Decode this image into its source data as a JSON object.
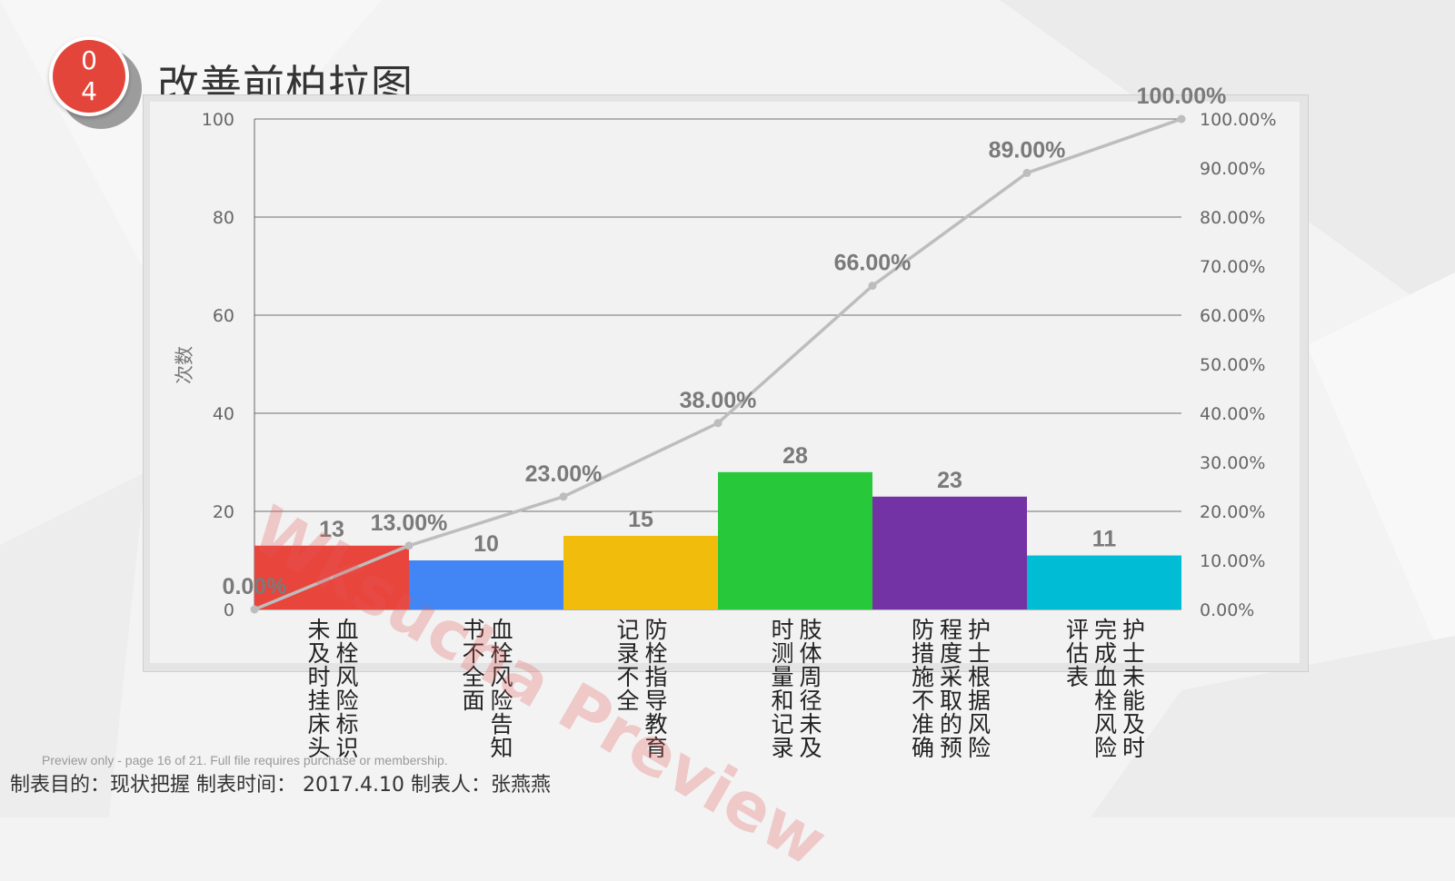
{
  "badge": {
    "line1": "0",
    "line2": "4"
  },
  "page_title": "改善前柏拉图",
  "watermark": "Wksucha Preview",
  "preview_note": "Preview only - page 16 of 21. Full file requires purchase or membership.",
  "footer": "制表目的：现状把握  制表时间： 2017.4.10  制表人：张燕燕",
  "colors": {
    "line": "#bdbdbd",
    "grid": "#444444",
    "bars": [
      "#e8453c",
      "#4285f4",
      "#f2bc0d",
      "#27c93a",
      "#7433a4",
      "#00bcd4"
    ]
  },
  "chart_data": {
    "type": "bar",
    "categories": [
      "血栓风险标识未及时挂床头",
      "血栓风险告知书不全面",
      "防栓指导教育记录不全",
      "肢体周径未及时测量和记录",
      "护士根据风险程度采取的预防措施不准确",
      "护士未能及时完成血栓风险评估表"
    ],
    "values": [
      13,
      10,
      15,
      28,
      23,
      11
    ],
    "value_labels": [
      "13",
      "10",
      "15",
      "28",
      "23",
      "11"
    ],
    "ylabel": "次数",
    "ylim": [
      0,
      100
    ],
    "y_ticks": [
      "0",
      "20",
      "40",
      "60",
      "80",
      "100"
    ],
    "y2lim": [
      0,
      100
    ],
    "y2_ticks": [
      "0.00%",
      "10.00%",
      "20.00%",
      "30.00%",
      "40.00%",
      "50.00%",
      "60.00%",
      "70.00%",
      "80.00%",
      "90.00%",
      "100.00%"
    ],
    "cumulative": {
      "values": [
        0,
        13,
        23,
        38,
        66,
        89,
        100
      ],
      "labels": [
        "0.00%",
        "13.00%",
        "23.00%",
        "38.00%",
        "66.00%",
        "89.00%",
        "100.00%"
      ]
    },
    "grid": true
  }
}
